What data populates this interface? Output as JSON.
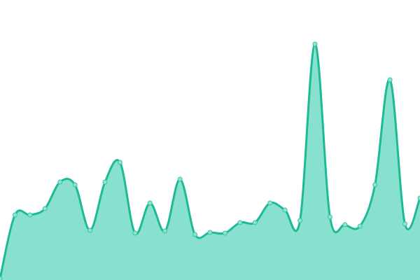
{
  "chart_data": {
    "type": "area",
    "title": "",
    "xlabel": "",
    "ylabel": "",
    "x": [
      0,
      1,
      2,
      3,
      4,
      5,
      6,
      7,
      8,
      9,
      10,
      11,
      12,
      13,
      14,
      15,
      16,
      17,
      18,
      19,
      20,
      21,
      22,
      23,
      24,
      25,
      26,
      27,
      28
    ],
    "series": [
      {
        "values": [
          2,
          93,
          93,
          102,
          140,
          136,
          71,
          140,
          168,
          67,
          110,
          70,
          144,
          65,
          68,
          67,
          82,
          82,
          110,
          100,
          85,
          337,
          90,
          79,
          77,
          136,
          286,
          80,
          117
        ]
      }
    ],
    "xlim": [
      0,
      28
    ],
    "ylim": [
      0,
      400
    ],
    "grid": false,
    "axes_visible": false,
    "curve": "smooth",
    "colors": {
      "line": "#1dbb95",
      "fill": "#88e0cf",
      "point_fill": "#8fe3d0",
      "point_stroke": "#3cc4a4"
    }
  }
}
